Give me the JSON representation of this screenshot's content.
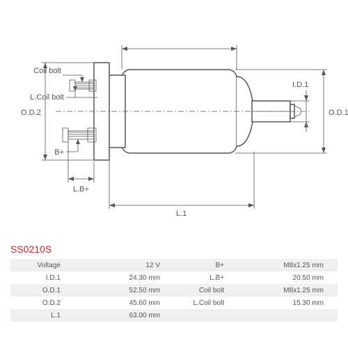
{
  "part_number": "SS0210S",
  "diagram": {
    "labels": {
      "od2": "O.D.2",
      "od1": "O.D.1",
      "id1": "I.D.1",
      "l1": "L.1",
      "lb": "L.B+",
      "coilbolt": "Coil bolt",
      "lcoilbolt": "L.Coil bolt",
      "bplus": "B+"
    },
    "colors": {
      "line": "#555555",
      "bg": "#ffffff"
    }
  },
  "specs": {
    "rows": [
      {
        "l1": "Voltage",
        "v1": "12 V",
        "l2": "B+",
        "v2": "M8x1.25 mm"
      },
      {
        "l1": "I.D.1",
        "v1": "24.30 mm",
        "l2": "L.B+",
        "v2": "20.50 mm"
      },
      {
        "l1": "O.D.1",
        "v1": "52.50 mm",
        "l2": "Coil bolt",
        "v2": "M8x1.25 mm"
      },
      {
        "l1": "O.D.2",
        "v1": "45.60 mm",
        "l2": "L.Coil bolt",
        "v2": "15.30 mm"
      },
      {
        "l1": "L.1",
        "v1": "63.00 mm",
        "l2": "",
        "v2": ""
      }
    ]
  }
}
